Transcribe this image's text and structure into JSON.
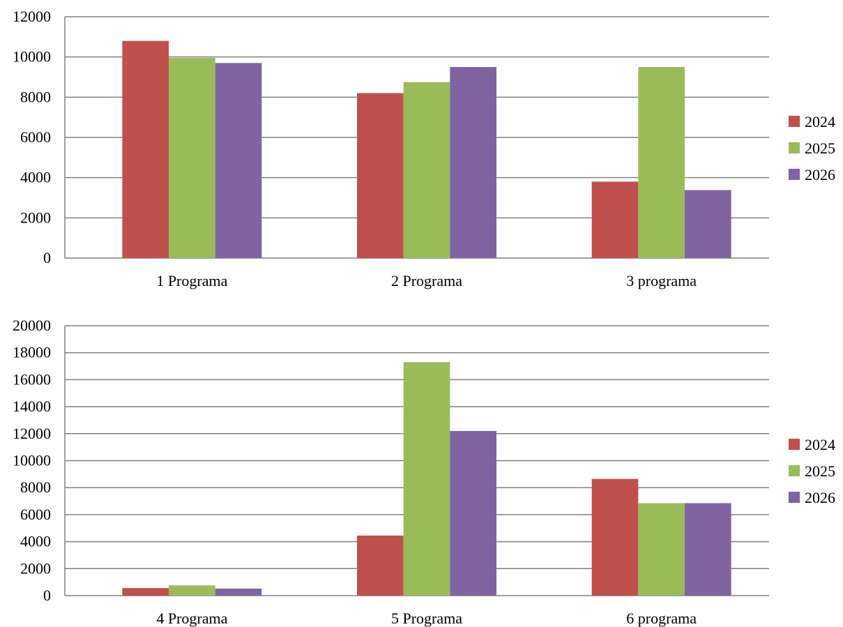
{
  "chart_data": [
    {
      "type": "bar",
      "categories": [
        "1 Programa",
        "2 Programa",
        "3 programa"
      ],
      "series": [
        {
          "name": "2024",
          "values": [
            10800,
            8200,
            3800
          ]
        },
        {
          "name": "2025",
          "values": [
            9950,
            8750,
            9500
          ]
        },
        {
          "name": "2026",
          "values": [
            9700,
            9500,
            3380
          ]
        }
      ],
      "ylim": [
        0,
        12000
      ],
      "yticks": [
        0,
        2000,
        4000,
        6000,
        8000,
        10000,
        12000
      ],
      "grid": true,
      "legend": "right"
    },
    {
      "type": "bar",
      "categories": [
        "4 Programa",
        "5 Programa",
        "6 programa"
      ],
      "series": [
        {
          "name": "2024",
          "values": [
            560,
            4450,
            8650
          ]
        },
        {
          "name": "2025",
          "values": [
            760,
            17300,
            6850
          ]
        },
        {
          "name": "2026",
          "values": [
            520,
            12200,
            6850
          ]
        }
      ],
      "ylim": [
        0,
        20000
      ],
      "yticks": [
        0,
        2000,
        4000,
        6000,
        8000,
        10000,
        12000,
        14000,
        16000,
        18000,
        20000
      ],
      "grid": true,
      "legend": "right"
    }
  ],
  "colors": {
    "series": [
      "#c0504d",
      "#9bbb59",
      "#8064a2"
    ],
    "grid": "#808080",
    "axis": "#808080"
  }
}
